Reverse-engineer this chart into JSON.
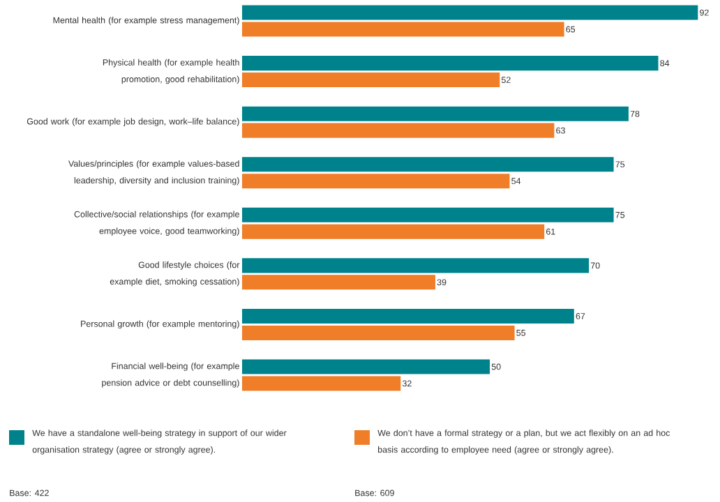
{
  "chart_data": {
    "type": "bar",
    "orientation": "horizontal",
    "categories": [
      "Mental health (for example stress management)",
      "Physical health (for example health promotion, good rehabilitation)",
      "Good work (for example job design, work–life balance)",
      "Values/principles (for example values-based leadership, diversity and inclusion training)",
      "Collective/social relationships (for example employee voice, good teamworking)",
      "Good lifestyle choices (for example diet, smoking cessation)",
      "Personal growth (for example mentoring)",
      "Financial well-being (for example pension advice or debt counselling)"
    ],
    "series": [
      {
        "name": "We have a standalone well-being strategy in support of our wider organisation strategy (agree or strongly agree).",
        "color": "#00828c",
        "values": [
          92,
          84,
          78,
          75,
          75,
          70,
          67,
          50
        ]
      },
      {
        "name": "We don’t have a formal strategy or a plan, but we act flexibly on an ad hoc basis according to employee need (agree or strongly agree).",
        "color": "#f07d28",
        "values": [
          65,
          52,
          63,
          54,
          61,
          39,
          55,
          32
        ]
      }
    ],
    "data_labels": true,
    "legend": "bottom",
    "annotations": [
      "Base: 422",
      "Base: 609"
    ]
  }
}
